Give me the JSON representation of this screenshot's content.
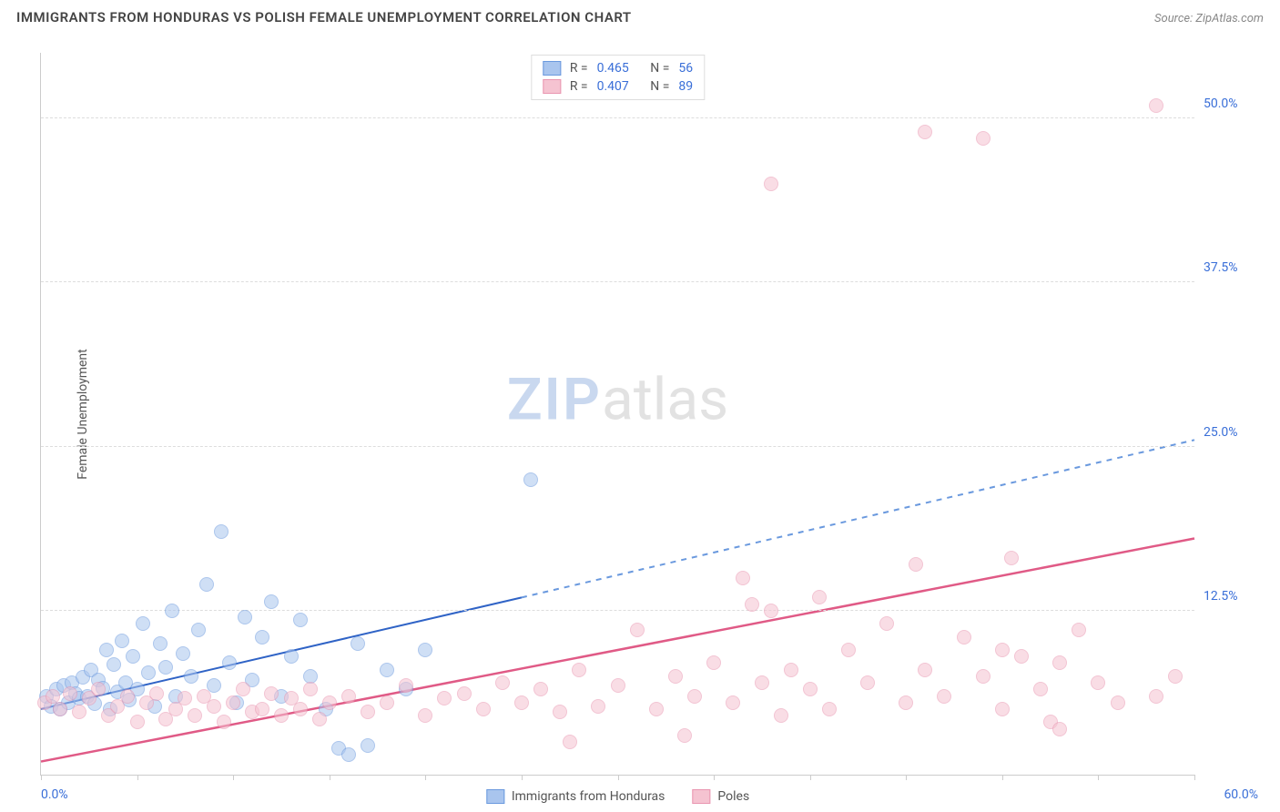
{
  "title": "IMMIGRANTS FROM HONDURAS VS POLISH FEMALE UNEMPLOYMENT CORRELATION CHART",
  "source": "Source: ZipAtlas.com",
  "y_axis_title": "Female Unemployment",
  "watermark_a": "ZIP",
  "watermark_b": "atlas",
  "chart": {
    "type": "scatter",
    "xlim": [
      0,
      60
    ],
    "ylim": [
      0,
      55
    ],
    "x_label_min": "0.0%",
    "x_label_max": "60.0%",
    "x_label_color": "#3a6fd8",
    "x_tick_step": 5,
    "y_ticks": [
      {
        "v": 12.5,
        "label": "12.5%"
      },
      {
        "v": 25.0,
        "label": "25.0%"
      },
      {
        "v": 37.5,
        "label": "37.5%"
      },
      {
        "v": 50.0,
        "label": "50.0%"
      }
    ],
    "y_tick_color": "#3a6fd8",
    "grid_color": "#dddddd",
    "background_color": "#ffffff",
    "marker_radius": 8,
    "marker_opacity": 0.55,
    "series": [
      {
        "id": "honduras",
        "label": "Immigrants from Honduras",
        "color_fill": "#a9c5ee",
        "color_stroke": "#6a99de",
        "R": "0.465",
        "N": "56",
        "trend": {
          "x1": 0,
          "y1": 5.0,
          "x2": 25,
          "y2": 13.5,
          "x2_ext": 60,
          "y2_ext": 25.5,
          "solid_color": "#2f63c6",
          "dash_color": "#6a99de",
          "width": 2
        },
        "points": [
          [
            0.3,
            6.0
          ],
          [
            0.5,
            5.2
          ],
          [
            0.8,
            6.5
          ],
          [
            1.0,
            5.0
          ],
          [
            1.2,
            6.8
          ],
          [
            1.4,
            5.5
          ],
          [
            1.6,
            7.0
          ],
          [
            1.8,
            6.2
          ],
          [
            2.0,
            5.8
          ],
          [
            2.2,
            7.4
          ],
          [
            2.4,
            6.0
          ],
          [
            2.6,
            8.0
          ],
          [
            2.8,
            5.4
          ],
          [
            3.0,
            7.2
          ],
          [
            3.2,
            6.6
          ],
          [
            3.4,
            9.5
          ],
          [
            3.6,
            5.0
          ],
          [
            3.8,
            8.4
          ],
          [
            4.0,
            6.3
          ],
          [
            4.2,
            10.2
          ],
          [
            4.4,
            7.0
          ],
          [
            4.6,
            5.7
          ],
          [
            4.8,
            9.0
          ],
          [
            5.0,
            6.5
          ],
          [
            5.3,
            11.5
          ],
          [
            5.6,
            7.8
          ],
          [
            5.9,
            5.2
          ],
          [
            6.2,
            10.0
          ],
          [
            6.5,
            8.2
          ],
          [
            6.8,
            12.5
          ],
          [
            7.0,
            6.0
          ],
          [
            7.4,
            9.2
          ],
          [
            7.8,
            7.5
          ],
          [
            8.2,
            11.0
          ],
          [
            8.6,
            14.5
          ],
          [
            9.0,
            6.8
          ],
          [
            9.4,
            18.5
          ],
          [
            9.8,
            8.5
          ],
          [
            10.2,
            5.5
          ],
          [
            10.6,
            12.0
          ],
          [
            11.0,
            7.2
          ],
          [
            11.5,
            10.5
          ],
          [
            12.0,
            13.2
          ],
          [
            12.5,
            6.0
          ],
          [
            13.0,
            9.0
          ],
          [
            13.5,
            11.8
          ],
          [
            14.0,
            7.5
          ],
          [
            14.8,
            5.0
          ],
          [
            15.5,
            2.0
          ],
          [
            16.0,
            1.5
          ],
          [
            16.5,
            10.0
          ],
          [
            17.0,
            2.2
          ],
          [
            18.0,
            8.0
          ],
          [
            19.0,
            6.5
          ],
          [
            20.0,
            9.5
          ],
          [
            25.5,
            22.5
          ]
        ]
      },
      {
        "id": "poles",
        "label": "Poles",
        "color_fill": "#f5c3d1",
        "color_stroke": "#e995b0",
        "R": "0.407",
        "N": "89",
        "trend": {
          "x1": 0,
          "y1": 1.0,
          "x2": 60,
          "y2": 18.0,
          "solid_color": "#e05a86",
          "width": 2.5
        },
        "points": [
          [
            0.2,
            5.5
          ],
          [
            0.6,
            6.0
          ],
          [
            1.0,
            5.0
          ],
          [
            1.5,
            6.2
          ],
          [
            2.0,
            4.8
          ],
          [
            2.5,
            5.8
          ],
          [
            3.0,
            6.5
          ],
          [
            3.5,
            4.5
          ],
          [
            4.0,
            5.2
          ],
          [
            4.5,
            6.0
          ],
          [
            5.0,
            4.0
          ],
          [
            5.5,
            5.5
          ],
          [
            6.0,
            6.2
          ],
          [
            6.5,
            4.2
          ],
          [
            7.0,
            5.0
          ],
          [
            7.5,
            5.8
          ],
          [
            8.0,
            4.5
          ],
          [
            8.5,
            6.0
          ],
          [
            9.0,
            5.2
          ],
          [
            9.5,
            4.0
          ],
          [
            10.0,
            5.5
          ],
          [
            10.5,
            6.5
          ],
          [
            11.0,
            4.8
          ],
          [
            11.5,
            5.0
          ],
          [
            12.0,
            6.2
          ],
          [
            12.5,
            4.5
          ],
          [
            13.0,
            5.8
          ],
          [
            13.5,
            5.0
          ],
          [
            14.0,
            6.5
          ],
          [
            14.5,
            4.2
          ],
          [
            15.0,
            5.5
          ],
          [
            16.0,
            6.0
          ],
          [
            17.0,
            4.8
          ],
          [
            18.0,
            5.5
          ],
          [
            19.0,
            6.8
          ],
          [
            20.0,
            4.5
          ],
          [
            21.0,
            5.8
          ],
          [
            22.0,
            6.2
          ],
          [
            23.0,
            5.0
          ],
          [
            24.0,
            7.0
          ],
          [
            25.0,
            5.5
          ],
          [
            26.0,
            6.5
          ],
          [
            27.0,
            4.8
          ],
          [
            27.5,
            2.5
          ],
          [
            28.0,
            8.0
          ],
          [
            29.0,
            5.2
          ],
          [
            30.0,
            6.8
          ],
          [
            31.0,
            11.0
          ],
          [
            32.0,
            5.0
          ],
          [
            33.0,
            7.5
          ],
          [
            33.5,
            3.0
          ],
          [
            34.0,
            6.0
          ],
          [
            35.0,
            8.5
          ],
          [
            36.0,
            5.5
          ],
          [
            36.5,
            15.0
          ],
          [
            37.0,
            13.0
          ],
          [
            37.5,
            7.0
          ],
          [
            38.0,
            12.5
          ],
          [
            38.5,
            4.5
          ],
          [
            39.0,
            8.0
          ],
          [
            40.0,
            6.5
          ],
          [
            40.5,
            13.5
          ],
          [
            41.0,
            5.0
          ],
          [
            42.0,
            9.5
          ],
          [
            43.0,
            7.0
          ],
          [
            44.0,
            11.5
          ],
          [
            45.0,
            5.5
          ],
          [
            45.5,
            16.0
          ],
          [
            46.0,
            8.0
          ],
          [
            47.0,
            6.0
          ],
          [
            48.0,
            10.5
          ],
          [
            49.0,
            7.5
          ],
          [
            50.0,
            5.0
          ],
          [
            50.5,
            16.5
          ],
          [
            51.0,
            9.0
          ],
          [
            52.0,
            6.5
          ],
          [
            52.5,
            4.0
          ],
          [
            53.0,
            8.5
          ],
          [
            54.0,
            11.0
          ],
          [
            55.0,
            7.0
          ],
          [
            56.0,
            5.5
          ],
          [
            58.0,
            6.0
          ],
          [
            59.0,
            7.5
          ],
          [
            38.0,
            45.0
          ],
          [
            46.0,
            49.0
          ],
          [
            49.0,
            48.5
          ],
          [
            58.0,
            51.0
          ],
          [
            53.0,
            3.5
          ],
          [
            50.0,
            9.5
          ]
        ]
      }
    ]
  },
  "legend_top": {
    "r_label": "R =",
    "n_label": "N ="
  }
}
